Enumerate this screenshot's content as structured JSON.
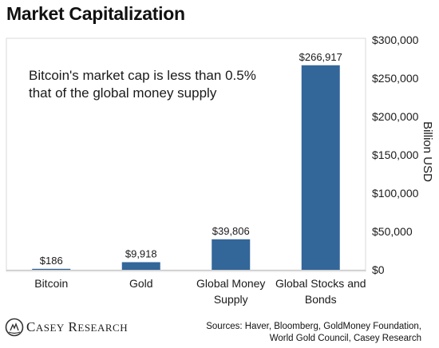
{
  "chart_data": {
    "type": "bar",
    "title": "Market Capitalization",
    "categories": [
      "Bitcoin",
      "Gold",
      "Global Money\nSupply",
      "Global Stocks and\nBonds"
    ],
    "values": [
      186,
      9918,
      39806,
      266917
    ],
    "value_labels": [
      "$186",
      "$9,918",
      "$39,806",
      "$266,917"
    ],
    "ylabel": "Billion USD",
    "ylim": [
      0,
      300000
    ],
    "yticks": [
      0,
      50000,
      100000,
      150000,
      200000,
      250000,
      300000
    ],
    "ytick_labels": [
      "$0",
      "$50,000",
      "$100,000",
      "$150,000",
      "$200,000",
      "$250,000",
      "$300,000"
    ],
    "y_axis_side": "right",
    "grid": false,
    "bar_color": "#336699",
    "annotation": "Bitcoin's market cap is less than 0.5% that of the global money supply"
  },
  "footer": {
    "brand": "Casey Research",
    "brand_first": "C",
    "brand_first_rest": "ASEY",
    "brand_second": "R",
    "brand_second_rest": "ESEARCH",
    "sources_line1": "Sources: Haver, Bloomberg, GoldMoney Foundation,",
    "sources_line2": "World Gold Council, Casey Research"
  }
}
